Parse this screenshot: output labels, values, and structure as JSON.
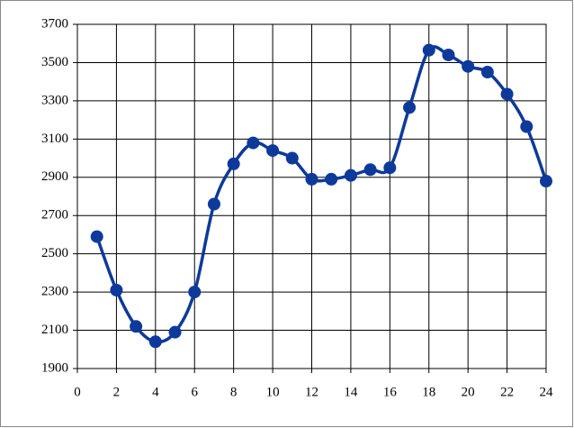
{
  "chart_data": {
    "type": "line",
    "x": [
      1,
      2,
      3,
      4,
      5,
      6,
      7,
      8,
      9,
      10,
      11,
      12,
      13,
      14,
      15,
      16,
      17,
      18,
      19,
      20,
      21,
      22,
      23,
      24
    ],
    "series": [
      {
        "color": "#0d3a9a",
        "values": [
          2590,
          2310,
          2120,
          2040,
          2090,
          2300,
          2760,
          2970,
          3080,
          3040,
          3000,
          2890,
          2890,
          2910,
          2940,
          2950,
          3265,
          3565,
          3540,
          3480,
          3450,
          3335,
          3165,
          2880
        ]
      }
    ],
    "xlim": [
      0,
      24
    ],
    "xticks": [
      0,
      2,
      4,
      6,
      8,
      10,
      12,
      14,
      16,
      18,
      20,
      22,
      24
    ],
    "ylim": [
      1900,
      3700
    ],
    "yticks": [
      1900,
      2100,
      2300,
      2500,
      2700,
      2900,
      3100,
      3300,
      3500,
      3700
    ],
    "grid": true,
    "smooth": true
  }
}
